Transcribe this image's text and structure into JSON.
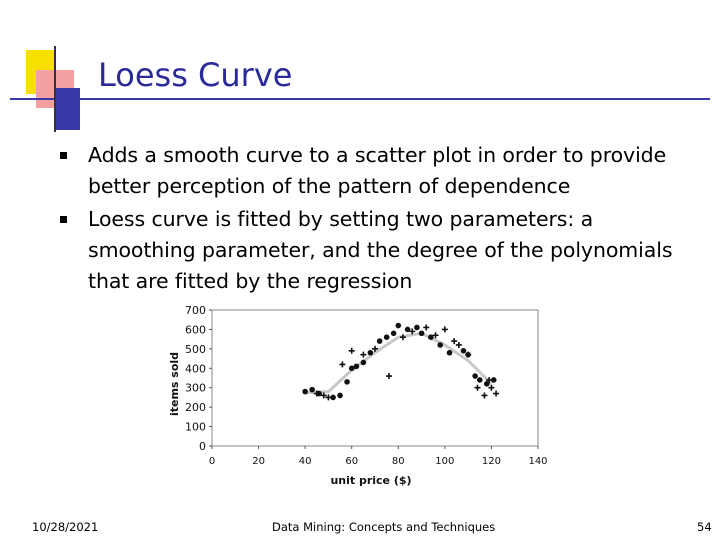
{
  "slide": {
    "title": "Loess Curve",
    "bullets": [
      "Adds a smooth curve to a scatter plot in order to provide better perception of the pattern of dependence",
      "Loess curve is fitted by setting two parameters: a smoothing parameter, and the degree of the polynomials that are fitted by the regression"
    ],
    "theme_colors": {
      "title": "#2a2a9a",
      "accent_blue": "#3838a8",
      "accent_yellow": "#f7e000",
      "accent_red": "#f2a0a0"
    }
  },
  "footer": {
    "date": "10/28/2021",
    "center": "Data Mining: Concepts and Techniques",
    "page": "54"
  },
  "chart_data": {
    "type": "scatter",
    "title": "",
    "xlabel": "unit price ($)",
    "ylabel": "items sold",
    "xlim": [
      0,
      140
    ],
    "ylim": [
      0,
      700
    ],
    "xticks": [
      "0",
      "20",
      "40",
      "60",
      "80",
      "100",
      "120",
      "140"
    ],
    "yticks": [
      "0",
      "100",
      "200",
      "300",
      "400",
      "500",
      "600",
      "700"
    ],
    "grid": false,
    "series": [
      {
        "marker": "circle",
        "points": [
          [
            40,
            280
          ],
          [
            43,
            290
          ],
          [
            46,
            270
          ],
          [
            52,
            250
          ],
          [
            55,
            260
          ],
          [
            58,
            330
          ],
          [
            60,
            400
          ],
          [
            62,
            410
          ],
          [
            65,
            430
          ],
          [
            68,
            480
          ],
          [
            72,
            540
          ],
          [
            75,
            560
          ],
          [
            78,
            580
          ],
          [
            80,
            620
          ],
          [
            84,
            600
          ],
          [
            88,
            610
          ],
          [
            90,
            580
          ],
          [
            94,
            560
          ],
          [
            98,
            520
          ],
          [
            102,
            480
          ],
          [
            108,
            490
          ],
          [
            110,
            470
          ],
          [
            113,
            360
          ],
          [
            115,
            340
          ],
          [
            118,
            320
          ],
          [
            121,
            340
          ]
        ]
      },
      {
        "marker": "plus",
        "points": [
          [
            45,
            270
          ],
          [
            48,
            260
          ],
          [
            50,
            250
          ],
          [
            56,
            420
          ],
          [
            60,
            490
          ],
          [
            65,
            470
          ],
          [
            70,
            500
          ],
          [
            76,
            360
          ],
          [
            82,
            560
          ],
          [
            86,
            590
          ],
          [
            92,
            610
          ],
          [
            96,
            570
          ],
          [
            100,
            600
          ],
          [
            104,
            540
          ],
          [
            106,
            520
          ],
          [
            110,
            470
          ],
          [
            114,
            300
          ],
          [
            117,
            260
          ],
          [
            119,
            340
          ],
          [
            120,
            300
          ],
          [
            122,
            270
          ]
        ]
      }
    ],
    "loess_curve": [
      [
        40,
        275
      ],
      [
        50,
        280
      ],
      [
        60,
        390
      ],
      [
        70,
        480
      ],
      [
        80,
        560
      ],
      [
        90,
        580
      ],
      [
        100,
        520
      ],
      [
        110,
        440
      ],
      [
        120,
        320
      ]
    ]
  }
}
